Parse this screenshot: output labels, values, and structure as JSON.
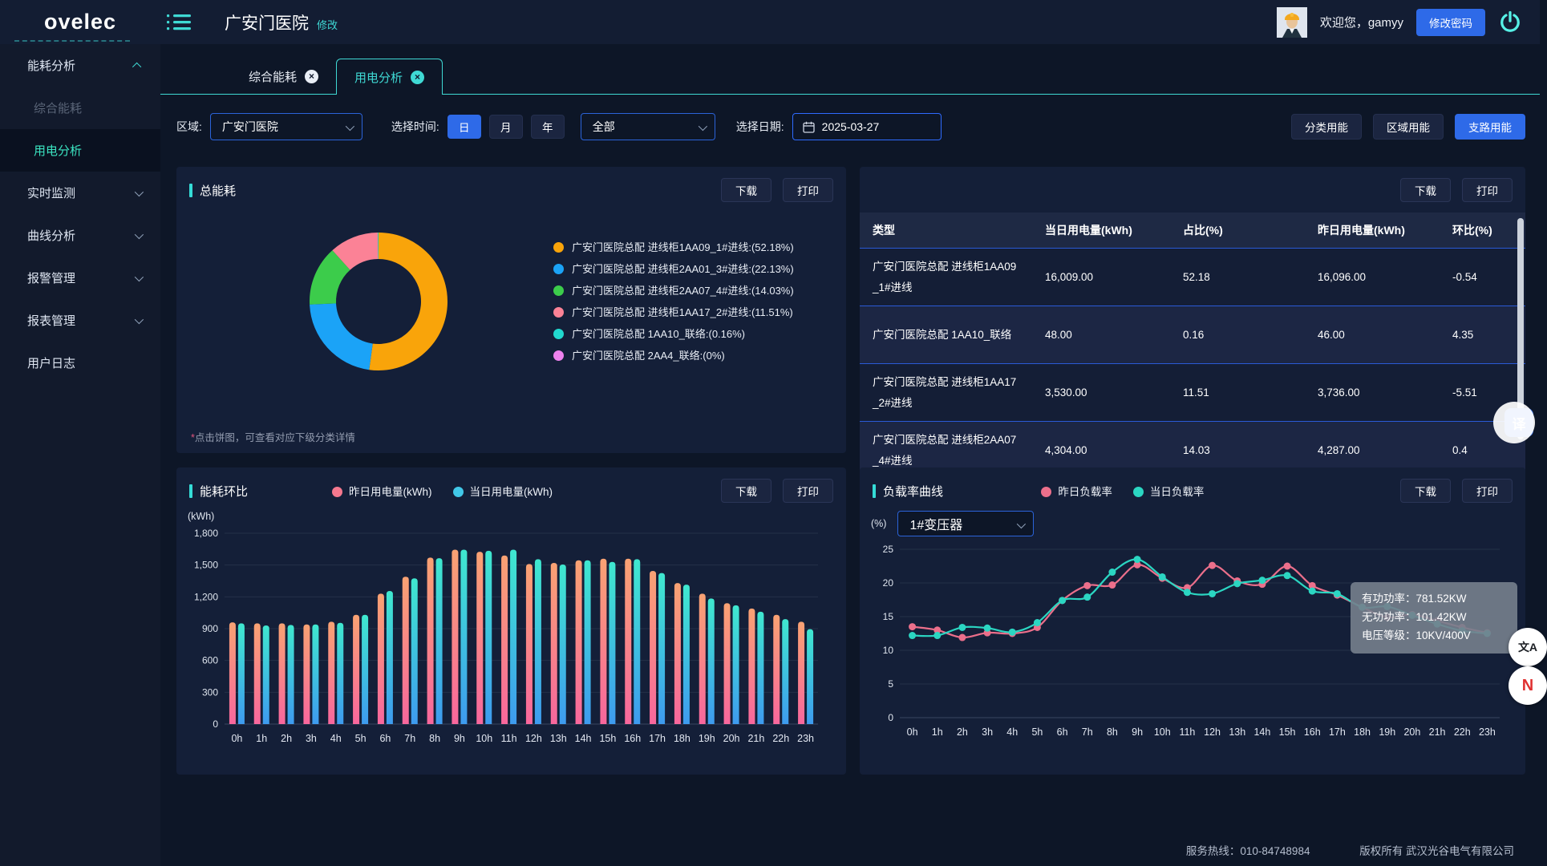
{
  "header": {
    "logo": "ovelec",
    "title": "广安门医院",
    "title_edit": "修改",
    "welcome": "欢迎您，gamyy",
    "change_password": "修改密码"
  },
  "icons": {
    "close_glyph": "×"
  },
  "sidebar": {
    "items": [
      {
        "label": "能耗分析",
        "expanded": true,
        "children": [
          {
            "label": "综合能耗",
            "state": "disabled"
          },
          {
            "label": "用电分析",
            "state": "active"
          }
        ]
      },
      {
        "label": "实时监测",
        "collapsible": true
      },
      {
        "label": "曲线分析",
        "collapsible": true
      },
      {
        "label": "报警管理",
        "collapsible": true
      },
      {
        "label": "报表管理",
        "collapsible": true
      },
      {
        "label": "用户日志",
        "collapsible": false
      }
    ]
  },
  "tabs": [
    {
      "label": "综合能耗",
      "active": false
    },
    {
      "label": "用电分析",
      "active": true
    }
  ],
  "filters": {
    "region_label": "区域:",
    "region_value": "广安门医院",
    "time_label": "选择时间:",
    "time_options": [
      "日",
      "月",
      "年"
    ],
    "time_active": "日",
    "scope_value": "全部",
    "date_label": "选择日期:",
    "date_value": "2025-03-27",
    "mode_buttons": [
      {
        "label": "分类用能",
        "active": false
      },
      {
        "label": "区域用能",
        "active": false
      },
      {
        "label": "支路用能",
        "active": true
      }
    ]
  },
  "buttons": {
    "download": "下载",
    "print": "打印"
  },
  "panels": {
    "pie": {
      "title": "总能耗",
      "note_ast": "*",
      "note": "点击饼图，可查看对应下级分类详情"
    },
    "bars": {
      "title": "能耗环比",
      "unit": "(kWh)"
    },
    "lines": {
      "title": "负载率曲线",
      "unit": "(%)",
      "transformer": "1#变压器"
    }
  },
  "table": {
    "headers": [
      "类型",
      "当日用电量(kWh)",
      "占比(%)",
      "昨日用电量(kWh)",
      "环比(%)"
    ],
    "rows": [
      [
        "广安门医院总配 进线柜1AA09_1#进线",
        "16,009.00",
        "52.18",
        "16,096.00",
        "-0.54"
      ],
      [
        "广安门医院总配 1AA10_联络",
        "48.00",
        "0.16",
        "46.00",
        "4.35"
      ],
      [
        "广安门医院总配 进线柜1AA17_2#进线",
        "3,530.00",
        "11.51",
        "3,736.00",
        "-5.51"
      ],
      [
        "广安门医院总配 进线柜2AA07_4#进线",
        "4,304.00",
        "14.03",
        "4,287.00",
        "0.4"
      ]
    ]
  },
  "chart_data": [
    {
      "type": "pie",
      "title": "总能耗",
      "labels": [
        "广安门医院总配 进线柜1AA09_1#进线:(52.18%)",
        "广安门医院总配 进线柜2AA01_3#进线:(22.13%)",
        "广安门医院总配 进线柜2AA07_4#进线:(14.03%)",
        "广安门医院总配 进线柜1AA17_2#进线:(11.51%)",
        "广安门医院总配 1AA10_联络:(0.16%)",
        "广安门医院总配 2AA4_联络:(0%)"
      ],
      "values": [
        52.18,
        22.13,
        14.03,
        11.51,
        0.16,
        0
      ],
      "colors": [
        "#F9A40A",
        "#1BA3F7",
        "#3CCC4B",
        "#FB8296",
        "#21D9CF",
        "#EE82EE"
      ],
      "donut": true,
      "legend_position": "right"
    },
    {
      "type": "bar",
      "title": "能耗环比",
      "categories": [
        "0h",
        "1h",
        "2h",
        "3h",
        "4h",
        "5h",
        "6h",
        "7h",
        "8h",
        "9h",
        "10h",
        "11h",
        "12h",
        "13h",
        "14h",
        "15h",
        "16h",
        "17h",
        "18h",
        "19h",
        "20h",
        "21h",
        "22h",
        "23h"
      ],
      "series": [
        {
          "name": "昨日用电量(kWh)",
          "legend_color": "#F5788E",
          "gradient": [
            "#F9A273",
            "#F8679D"
          ],
          "values": [
            960,
            950,
            950,
            940,
            965,
            1030,
            1230,
            1390,
            1570,
            1645,
            1625,
            1590,
            1510,
            1520,
            1545,
            1560,
            1560,
            1445,
            1330,
            1230,
            1140,
            1090,
            1030,
            965
          ]
        },
        {
          "name": "当日用电量(kWh)",
          "legend_color": "#41C8E8",
          "gradient": [
            "#3FE8CF",
            "#3E9BEF"
          ],
          "values": [
            950,
            930,
            935,
            940,
            955,
            1030,
            1255,
            1375,
            1565,
            1645,
            1635,
            1645,
            1555,
            1505,
            1545,
            1530,
            1555,
            1425,
            1315,
            1185,
            1120,
            1060,
            990,
            895
          ]
        }
      ],
      "ylabel": "(kWh)",
      "ylim": [
        0,
        1800
      ],
      "yticks": [
        0,
        300,
        600,
        900,
        1200,
        1500,
        1800
      ],
      "ytick_labels": [
        "0",
        "300",
        "600",
        "900",
        "1,200",
        "1,500",
        "1,800"
      ],
      "grid": true,
      "legend_position": "top-center"
    },
    {
      "type": "line",
      "title": "负载率曲线",
      "categories": [
        "0h",
        "1h",
        "2h",
        "3h",
        "4h",
        "5h",
        "6h",
        "7h",
        "8h",
        "9h",
        "10h",
        "11h",
        "12h",
        "13h",
        "14h",
        "15h",
        "16h",
        "17h",
        "18h",
        "19h",
        "20h",
        "21h",
        "22h",
        "23h"
      ],
      "series": [
        {
          "name": "昨日负载率",
          "color": "#EC6F8B",
          "values": [
            13.5,
            13,
            11.9,
            12.6,
            12.5,
            13.4,
            17.4,
            19.6,
            19.7,
            22.7,
            20.7,
            19.3,
            22.6,
            20.3,
            19.8,
            22.5,
            19.6,
            18.2,
            16.4,
            14.9,
            15.3,
            14.4,
            13.4,
            12.6
          ]
        },
        {
          "name": "当日负载率",
          "color": "#2BD6C2",
          "values": [
            12.2,
            12.2,
            13.4,
            13.3,
            12.7,
            14.1,
            17.4,
            17.9,
            21.6,
            23.5,
            20.9,
            18.6,
            18.4,
            19.9,
            20.4,
            21.1,
            18.8,
            18.4,
            16.4,
            16.5,
            15.2,
            13.9,
            12.9,
            12.5
          ]
        }
      ],
      "ylabel": "(%)",
      "ylim": [
        0,
        25
      ],
      "yticks": [
        0,
        5,
        10,
        15,
        20,
        25
      ],
      "ytick_labels": [
        "0",
        "5",
        "10",
        "15",
        "20",
        "25"
      ],
      "grid": true,
      "legend_position": "top-center",
      "tooltip": [
        "有功功率：781.52KW",
        "无功功率：101.42KW",
        "电压等级：10KV/400V"
      ]
    }
  ],
  "floating": {
    "translate_badge": "译",
    "circle1": "文A",
    "circle2": "N"
  },
  "footer": {
    "hotline_label": "服务热线：",
    "hotline": "010-84748984",
    "copyright": "版权所有 武汉光谷电气有限公司"
  }
}
